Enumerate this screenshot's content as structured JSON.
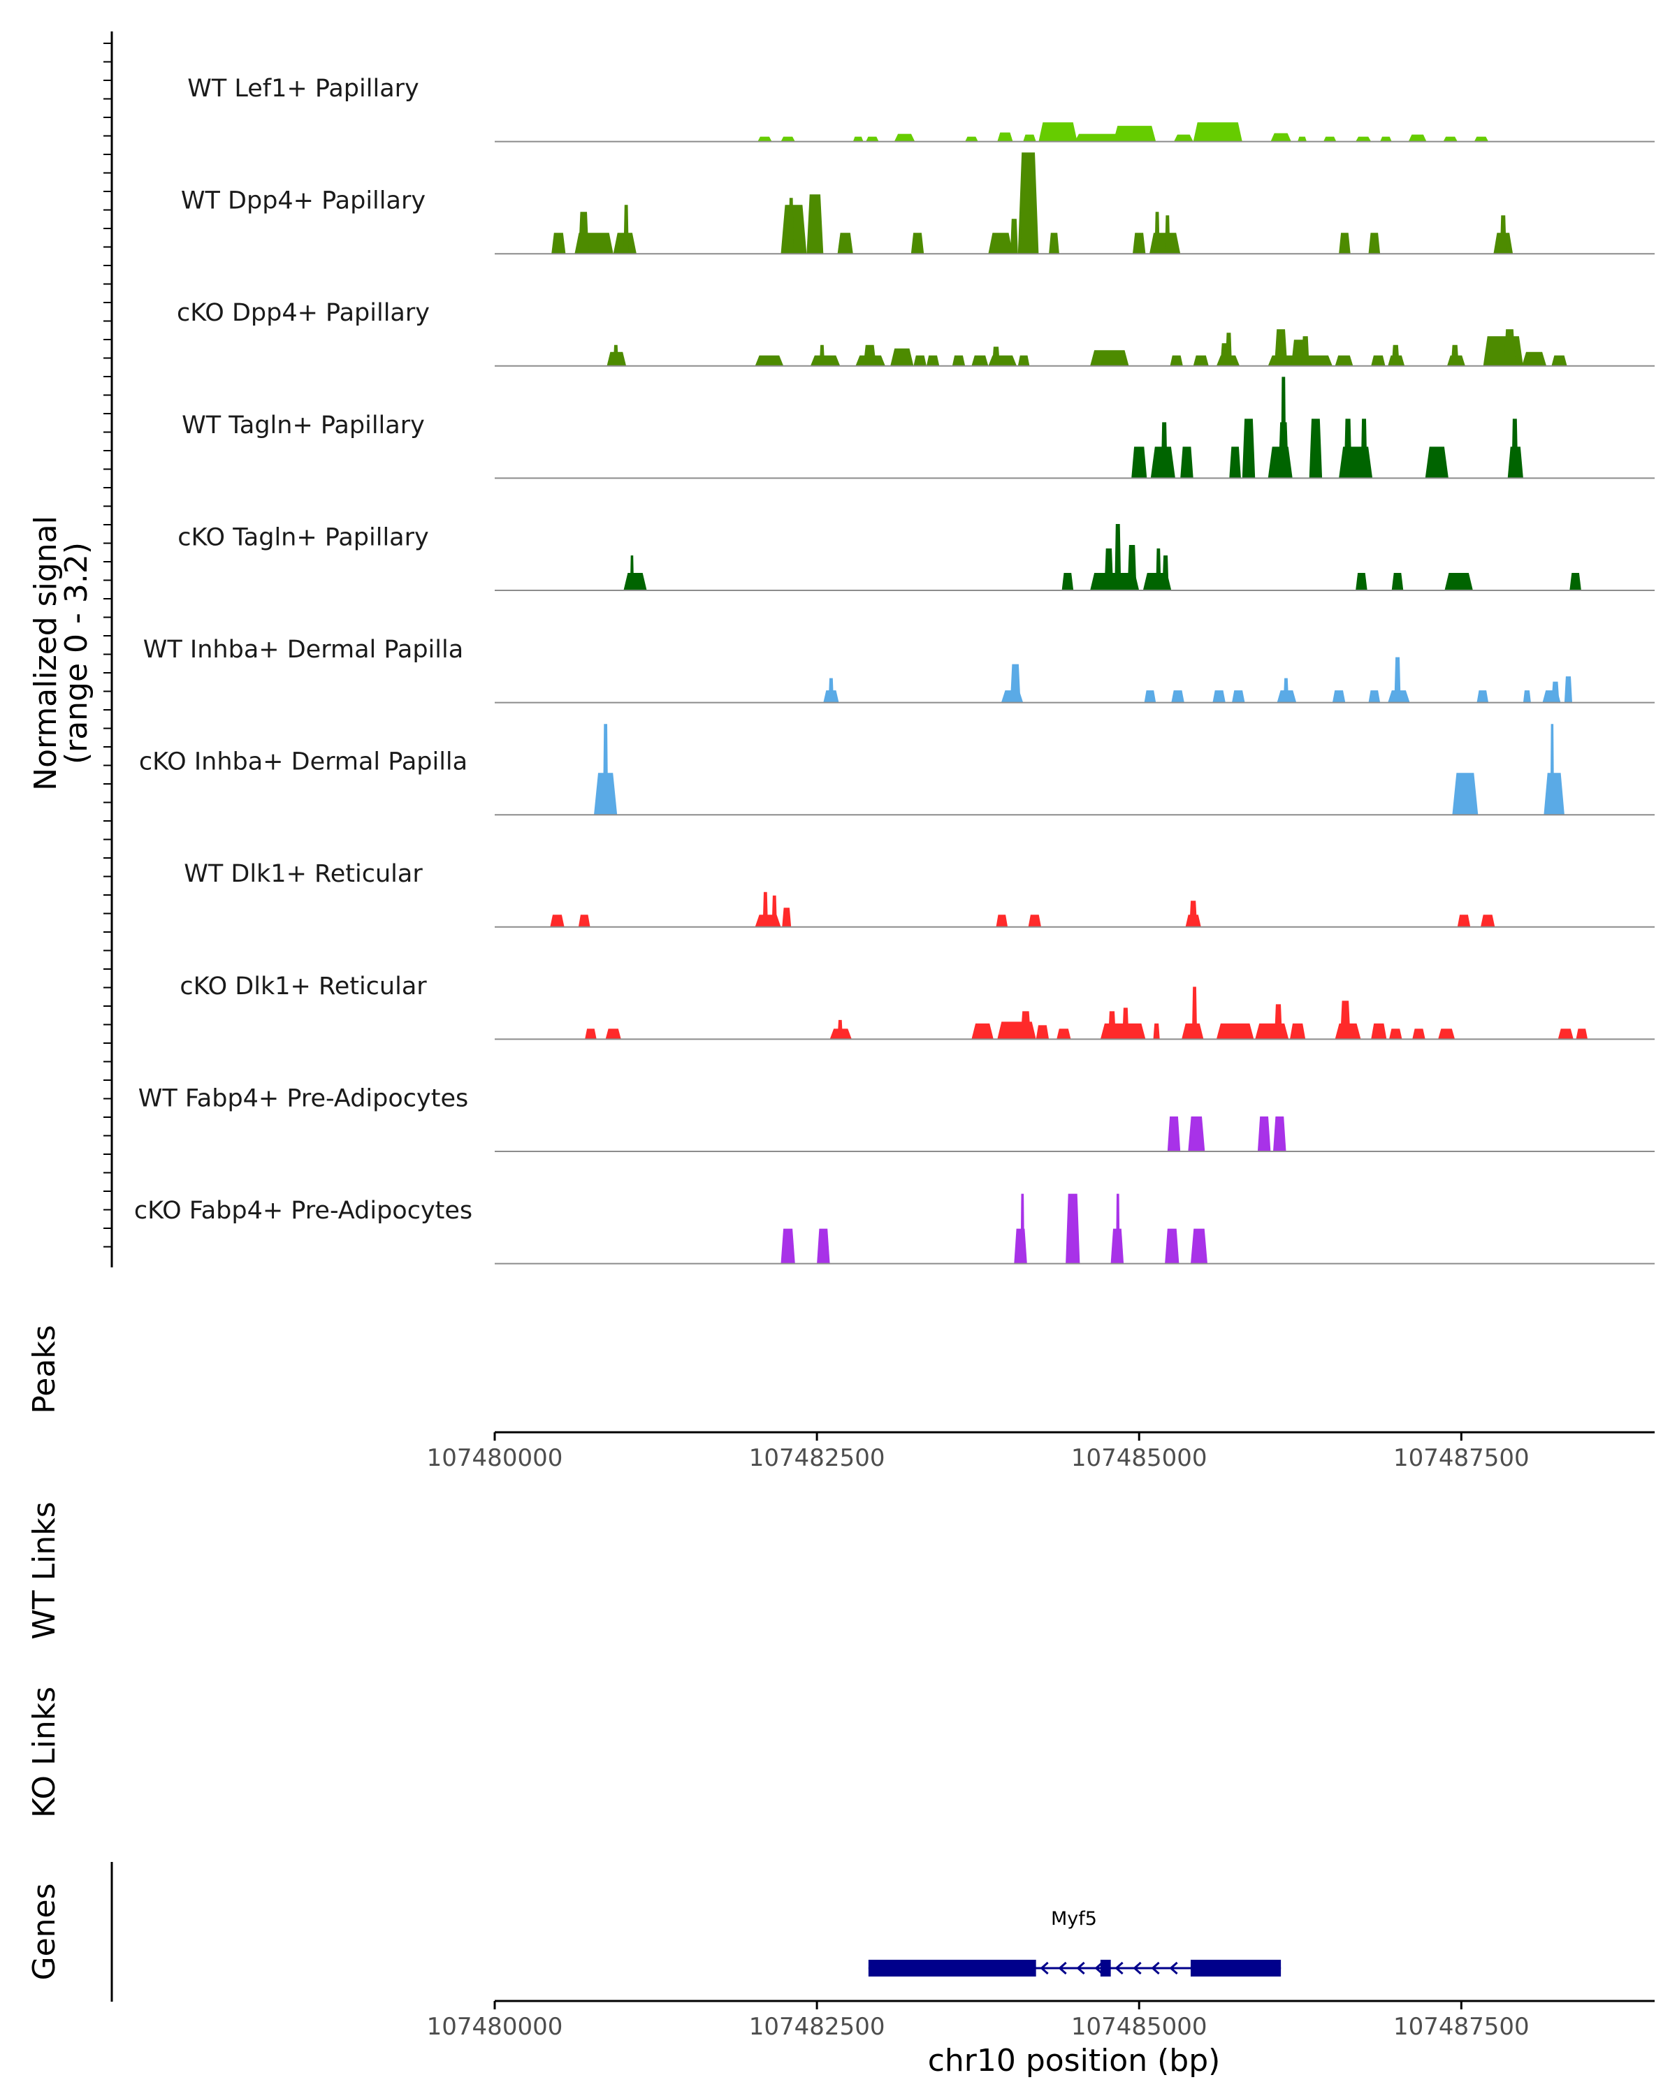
{
  "chart_data": {
    "type": "area",
    "title": "",
    "genome": "chr10",
    "xlabel": "chr10 position (bp)",
    "xlim": [
      107480000,
      107489000
    ],
    "xticks": [
      107480000,
      107482500,
      107485000,
      107487500
    ],
    "xtick_labels": [
      "107480000",
      "107482500",
      "107485000",
      "107487500"
    ],
    "ylabel_line1": "Normalized signal",
    "ylabel_line2": "(range 0 - 3.2)",
    "signal_range": [
      0,
      3.2
    ],
    "panels": {
      "peaks_label": "Peaks",
      "wt_links_label": "WT Links",
      "ko_links_label": "KO Links",
      "genes_label": "Genes"
    },
    "tracks": [
      {
        "name": "WT Lef1+ Papillary",
        "color": "#66cc00",
        "peaks": [
          [
            107482040,
            107482150,
            0.14
          ],
          [
            107482220,
            107482330,
            0.14
          ],
          [
            107482780,
            107482860,
            0.14
          ],
          [
            107482880,
            107482980,
            0.14
          ],
          [
            107483100,
            107483260,
            0.22
          ],
          [
            107483650,
            107483750,
            0.14
          ],
          [
            107483900,
            107484020,
            0.26
          ],
          [
            107484100,
            107484200,
            0.2
          ],
          [
            107484220,
            107484520,
            0.55
          ],
          [
            107484500,
            107484900,
            0.22
          ],
          [
            107484800,
            107485130,
            0.45
          ],
          [
            107485270,
            107485420,
            0.2
          ],
          [
            107485420,
            107485800,
            0.55
          ],
          [
            107486020,
            107486180,
            0.24
          ],
          [
            107486230,
            107486300,
            0.14
          ],
          [
            107486430,
            107486530,
            0.14
          ],
          [
            107486680,
            107486800,
            0.14
          ],
          [
            107486870,
            107486960,
            0.14
          ],
          [
            107487090,
            107487230,
            0.2
          ],
          [
            107487360,
            107487470,
            0.14
          ],
          [
            107487600,
            107487710,
            0.14
          ]
        ]
      },
      {
        "name": "WT Dpp4+ Papillary",
        "color": "#4d8b00",
        "peaks": [
          [
            107480440,
            107480550,
            0.6
          ],
          [
            107480620,
            107480920,
            0.6
          ],
          [
            107480650,
            107480730,
            1.2
          ],
          [
            107480920,
            107481100,
            0.6
          ],
          [
            107481000,
            107481040,
            1.4
          ],
          [
            107482220,
            107482420,
            1.4
          ],
          [
            107482280,
            107482320,
            1.6
          ],
          [
            107482420,
            107482550,
            1.7
          ],
          [
            107482660,
            107482780,
            0.6
          ],
          [
            107483230,
            107483330,
            0.6
          ],
          [
            107483830,
            107484020,
            0.6
          ],
          [
            107484060,
            107484220,
            2.9
          ],
          [
            107484000,
            107484060,
            1.0
          ],
          [
            107484080,
            107484160,
            2.2
          ],
          [
            107484300,
            107484380,
            0.6
          ],
          [
            107484950,
            107485050,
            0.6
          ],
          [
            107485080,
            107485320,
            0.6
          ],
          [
            107485120,
            107485160,
            1.2
          ],
          [
            107485200,
            107485240,
            1.1
          ],
          [
            107486550,
            107486640,
            0.6
          ],
          [
            107486780,
            107486870,
            0.6
          ],
          [
            107487750,
            107487900,
            0.6
          ],
          [
            107487800,
            107487850,
            1.1
          ]
        ]
      },
      {
        "name": "cKO Dpp4+ Papillary",
        "color": "#4d8b00",
        "peaks": [
          [
            107480870,
            107481020,
            0.4
          ],
          [
            107480920,
            107480960,
            0.6
          ],
          [
            107482020,
            107482240,
            0.3
          ],
          [
            107482450,
            107482680,
            0.3
          ],
          [
            107482520,
            107482560,
            0.6
          ],
          [
            107482800,
            107483030,
            0.3
          ],
          [
            107482860,
            107482960,
            0.6
          ],
          [
            107483070,
            107483250,
            0.5
          ],
          [
            107483250,
            107483350,
            0.3
          ],
          [
            107483350,
            107483450,
            0.3
          ],
          [
            107483550,
            107483650,
            0.3
          ],
          [
            107483700,
            107483830,
            0.3
          ],
          [
            107483830,
            107484050,
            0.3
          ],
          [
            107483860,
            107483920,
            0.55
          ],
          [
            107484060,
            107484150,
            0.3
          ],
          [
            107484620,
            107484920,
            0.45
          ],
          [
            107485240,
            107485340,
            0.3
          ],
          [
            107485420,
            107485540,
            0.3
          ],
          [
            107485600,
            107485780,
            0.3
          ],
          [
            107485630,
            107485700,
            0.65
          ],
          [
            107485670,
            107485720,
            0.95
          ],
          [
            107486000,
            107486500,
            0.3
          ],
          [
            107486050,
            107486150,
            1.05
          ],
          [
            107486180,
            107486300,
            0.75
          ],
          [
            107486260,
            107486320,
            0.85
          ],
          [
            107486520,
            107486660,
            0.3
          ],
          [
            107486800,
            107486910,
            0.3
          ],
          [
            107486930,
            107487060,
            0.3
          ],
          [
            107486960,
            107487020,
            0.6
          ],
          [
            107487390,
            107487530,
            0.3
          ],
          [
            107487420,
            107487480,
            0.6
          ],
          [
            107487670,
            107487980,
            0.85
          ],
          [
            107487830,
            107487920,
            1.05
          ],
          [
            107487970,
            107488160,
            0.4
          ],
          [
            107488200,
            107488320,
            0.3
          ]
        ]
      },
      {
        "name": "WT Tagln+ Papillary",
        "color": "#006400",
        "peaks": [
          [
            107484940,
            107485060,
            0.9
          ],
          [
            107485090,
            107485280,
            0.9
          ],
          [
            107485170,
            107485220,
            1.6
          ],
          [
            107485320,
            107485420,
            0.9
          ],
          [
            107485700,
            107485790,
            0.9
          ],
          [
            107485800,
            107485900,
            1.7
          ],
          [
            107486000,
            107486190,
            0.9
          ],
          [
            107486100,
            107486140,
            2.9
          ],
          [
            107486080,
            107486160,
            1.6
          ],
          [
            107486320,
            107486420,
            1.7
          ],
          [
            107486550,
            107486810,
            0.9
          ],
          [
            107486590,
            107486650,
            1.7
          ],
          [
            107486720,
            107486770,
            1.7
          ],
          [
            107487220,
            107487400,
            0.9
          ],
          [
            107487860,
            107487980,
            0.9
          ],
          [
            107487890,
            107487940,
            1.7
          ]
        ]
      },
      {
        "name": "cKO Tagln+ Papillary",
        "color": "#006400",
        "peaks": [
          [
            107481000,
            107481180,
            0.5
          ],
          [
            107481050,
            107481080,
            1.0
          ],
          [
            107484400,
            107484490,
            0.5
          ],
          [
            107484620,
            107485000,
            0.5
          ],
          [
            107484810,
            107484860,
            1.9
          ],
          [
            107484730,
            107484800,
            1.2
          ],
          [
            107484910,
            107484980,
            1.3
          ],
          [
            107485030,
            107485250,
            0.5
          ],
          [
            107485130,
            107485170,
            1.2
          ],
          [
            107485180,
            107485230,
            1.0
          ],
          [
            107486680,
            107486770,
            0.5
          ],
          [
            107486960,
            107487050,
            0.5
          ],
          [
            107487370,
            107487590,
            0.5
          ],
          [
            107488340,
            107488430,
            0.5
          ]
        ]
      },
      {
        "name": "WT Inhba+ Dermal Papilla",
        "color": "#5aaae6",
        "peaks": [
          [
            107482550,
            107482670,
            0.35
          ],
          [
            107482590,
            107482630,
            0.7
          ],
          [
            107483930,
            107484100,
            0.35
          ],
          [
            107484000,
            107484080,
            1.1
          ],
          [
            107485040,
            107485130,
            0.35
          ],
          [
            107485250,
            107485350,
            0.35
          ],
          [
            107485570,
            107485670,
            0.35
          ],
          [
            107485720,
            107485820,
            0.35
          ],
          [
            107486070,
            107486220,
            0.35
          ],
          [
            107486120,
            107486160,
            0.7
          ],
          [
            107486500,
            107486600,
            0.35
          ],
          [
            107486780,
            107486870,
            0.35
          ],
          [
            107486930,
            107487100,
            0.35
          ],
          [
            107486980,
            107487030,
            1.3
          ],
          [
            107487620,
            107487710,
            0.35
          ],
          [
            107487980,
            107488040,
            0.35
          ],
          [
            107488130,
            107488270,
            0.35
          ],
          [
            107488200,
            107488260,
            0.6
          ],
          [
            107488300,
            107488360,
            0.75
          ]
        ]
      },
      {
        "name": "cKO Inhba+ Dermal Papilla",
        "color": "#5aaae6",
        "peaks": [
          [
            107480770,
            107480950,
            1.2
          ],
          [
            107480840,
            107480880,
            2.6
          ],
          [
            107487430,
            107487630,
            1.2
          ],
          [
            107488140,
            107488300,
            1.2
          ],
          [
            107488190,
            107488220,
            2.6
          ]
        ]
      },
      {
        "name": "WT Dlk1+ Reticular",
        "color": "#ff2a2a",
        "peaks": [
          [
            107480430,
            107480540,
            0.35
          ],
          [
            107480650,
            107480740,
            0.35
          ],
          [
            107482020,
            107482220,
            0.35
          ],
          [
            107482080,
            107482120,
            1.0
          ],
          [
            107482150,
            107482190,
            0.9
          ],
          [
            107482230,
            107482300,
            0.55
          ],
          [
            107483890,
            107483980,
            0.35
          ],
          [
            107484140,
            107484240,
            0.35
          ],
          [
            107485360,
            107485480,
            0.35
          ],
          [
            107485390,
            107485450,
            0.75
          ],
          [
            107487470,
            107487570,
            0.35
          ],
          [
            107487650,
            107487760,
            0.35
          ]
        ]
      },
      {
        "name": "cKO Dlk1+ Reticular",
        "color": "#ff2a2a",
        "peaks": [
          [
            107480700,
            107480790,
            0.3
          ],
          [
            107480860,
            107480980,
            0.3
          ],
          [
            107482600,
            107482770,
            0.3
          ],
          [
            107482660,
            107482700,
            0.55
          ],
          [
            107483700,
            107483870,
            0.45
          ],
          [
            107483900,
            107484200,
            0.5
          ],
          [
            107484080,
            107484160,
            0.8
          ],
          [
            107484200,
            107484300,
            0.4
          ],
          [
            107484360,
            107484470,
            0.3
          ],
          [
            107484700,
            107485050,
            0.45
          ],
          [
            107484760,
            107484820,
            0.8
          ],
          [
            107484870,
            107484920,
            0.9
          ],
          [
            107485110,
            107485160,
            0.45
          ],
          [
            107485330,
            107485500,
            0.45
          ],
          [
            107485410,
            107485450,
            1.5
          ],
          [
            107485600,
            107485890,
            0.45
          ],
          [
            107485900,
            107486160,
            0.45
          ],
          [
            107486050,
            107486110,
            1.0
          ],
          [
            107486170,
            107486290,
            0.45
          ],
          [
            107486520,
            107486720,
            0.45
          ],
          [
            107486560,
            107486640,
            1.1
          ],
          [
            107486800,
            107486920,
            0.45
          ],
          [
            107486940,
            107487040,
            0.3
          ],
          [
            107487120,
            107487220,
            0.3
          ],
          [
            107487320,
            107487450,
            0.3
          ],
          [
            107488250,
            107488370,
            0.3
          ],
          [
            107488390,
            107488480,
            0.3
          ]
        ]
      },
      {
        "name": "WT Fabp4+ Pre-Adipocytes",
        "color": "#a832e8",
        "peaks": [
          [
            107485220,
            107485320,
            1.0
          ],
          [
            107485380,
            107485510,
            1.0
          ],
          [
            107485920,
            107486020,
            1.0
          ],
          [
            107486040,
            107486140,
            1.0
          ]
        ]
      },
      {
        "name": "cKO Fabp4+ Pre-Adipocytes",
        "color": "#a832e8",
        "peaks": [
          [
            107482220,
            107482330,
            1.0
          ],
          [
            107482500,
            107482600,
            1.0
          ],
          [
            107484030,
            107484130,
            1.0
          ],
          [
            107484080,
            107484110,
            2.0
          ],
          [
            107484430,
            107484540,
            2.0
          ],
          [
            107484780,
            107484880,
            1.0
          ],
          [
            107484820,
            107484850,
            2.0
          ],
          [
            107485200,
            107485310,
            1.0
          ],
          [
            107485400,
            107485530,
            1.0
          ]
        ]
      }
    ],
    "gene": {
      "name": "Myf5",
      "strand": "-",
      "start": 107482900,
      "end": 107486100,
      "exons": [
        [
          107482900,
          107484200
        ],
        [
          107484700,
          107484780
        ],
        [
          107485400,
          107486100
        ]
      ]
    }
  }
}
